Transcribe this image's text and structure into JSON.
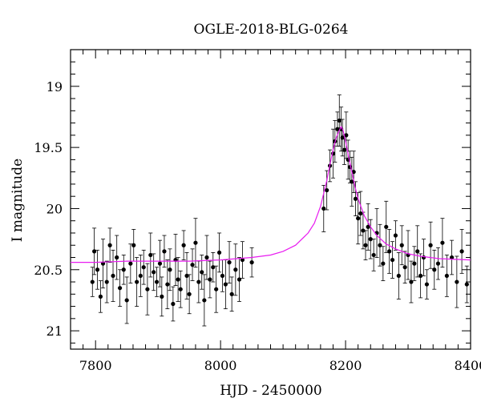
{
  "chart_data": {
    "type": "scatter",
    "title": "OGLE-2018-BLG-0264",
    "xlabel": "HJD - 2450000",
    "ylabel": "I magnitude",
    "xlim": [
      7760,
      8400
    ],
    "ylim": [
      21.15,
      18.7
    ],
    "y_inverted": true,
    "x_ticks": [
      7800,
      8000,
      8200,
      8400
    ],
    "x_tick_labels": [
      "7800",
      "8000",
      "8200",
      "8400"
    ],
    "y_ticks": [
      19,
      19.5,
      20,
      20.5,
      21
    ],
    "y_tick_labels": [
      "19",
      "19.5",
      "20",
      "20.5",
      "21"
    ],
    "grid": false,
    "legend": "none",
    "colors": {
      "points": "#000000",
      "model": "#e81cf0"
    },
    "model_curve": {
      "description": "microlensing model fit",
      "baseline_mag": 20.44,
      "t0": 8193,
      "peak_mag": 19.33,
      "x": [
        7760,
        7800,
        7850,
        7900,
        7950,
        8000,
        8050,
        8080,
        8100,
        8120,
        8140,
        8150,
        8160,
        8170,
        8175,
        8180,
        8185,
        8190,
        8193,
        8196,
        8200,
        8205,
        8210,
        8215,
        8220,
        8230,
        8240,
        8250,
        8265,
        8280,
        8300,
        8320,
        8350,
        8400
      ],
      "y": [
        20.44,
        20.44,
        20.43,
        20.43,
        20.43,
        20.42,
        20.4,
        20.38,
        20.35,
        20.3,
        20.2,
        20.12,
        19.98,
        19.77,
        19.64,
        19.52,
        19.42,
        19.36,
        19.33,
        19.36,
        19.45,
        19.58,
        19.7,
        19.82,
        19.92,
        20.06,
        20.15,
        20.22,
        20.29,
        20.33,
        20.37,
        20.39,
        20.41,
        20.42
      ]
    },
    "series": [
      {
        "x": [
          7795,
          7798,
          7803,
          7808,
          7812,
          7818,
          7823,
          7828,
          7834,
          7839,
          7845,
          7850,
          7856,
          7861,
          7866,
          7872,
          7877,
          7883,
          7888,
          7893,
          7898,
          7903,
          7906,
          7910,
          7915,
          7919,
          7924,
          7928,
          7932,
          7936,
          7941,
          7946,
          7950,
          7955,
          7960,
          7965,
          7970,
          7974,
          7978,
          7983,
          7988,
          7993,
          7998,
          8003,
          8008,
          8014,
          8018,
          8024,
          8030,
          8035,
          8050,
          8165,
          8170,
          8175,
          8180,
          8183,
          8187,
          8190,
          8193,
          8195,
          8198,
          8201,
          8204,
          8207,
          8210,
          8213,
          8216,
          8220,
          8224,
          8228,
          8232,
          8236,
          8240,
          8245,
          8250,
          8255,
          8260,
          8265,
          8270,
          8275,
          8280,
          8285,
          8290,
          8295,
          8300,
          8305,
          8310,
          8315,
          8320,
          8325,
          8330,
          8336,
          8342,
          8348,
          8355,
          8362,
          8370,
          8378,
          8386,
          8394
        ],
        "y": [
          20.6,
          20.35,
          20.5,
          20.72,
          20.45,
          20.6,
          20.3,
          20.55,
          20.4,
          20.65,
          20.5,
          20.75,
          20.45,
          20.3,
          20.6,
          20.55,
          20.48,
          20.66,
          20.38,
          20.52,
          20.6,
          20.45,
          20.72,
          20.35,
          20.62,
          20.5,
          20.78,
          20.42,
          20.58,
          20.66,
          20.3,
          20.55,
          20.7,
          20.46,
          20.28,
          20.6,
          20.52,
          20.75,
          20.4,
          20.58,
          20.48,
          20.66,
          20.36,
          20.55,
          20.62,
          20.44,
          20.7,
          20.5,
          20.58,
          20.42,
          20.44,
          20.0,
          19.85,
          19.65,
          19.55,
          19.45,
          19.35,
          19.28,
          19.35,
          19.42,
          19.52,
          19.4,
          19.6,
          19.66,
          19.78,
          19.7,
          19.92,
          20.08,
          20.04,
          20.18,
          20.3,
          20.15,
          20.25,
          20.38,
          20.2,
          20.3,
          20.45,
          20.15,
          20.35,
          20.42,
          20.22,
          20.55,
          20.3,
          20.48,
          20.38,
          20.6,
          20.45,
          20.35,
          20.55,
          20.4,
          20.62,
          20.3,
          20.5,
          20.45,
          20.28,
          20.55,
          20.4,
          20.6,
          20.35,
          20.62
        ]
      }
    ]
  }
}
